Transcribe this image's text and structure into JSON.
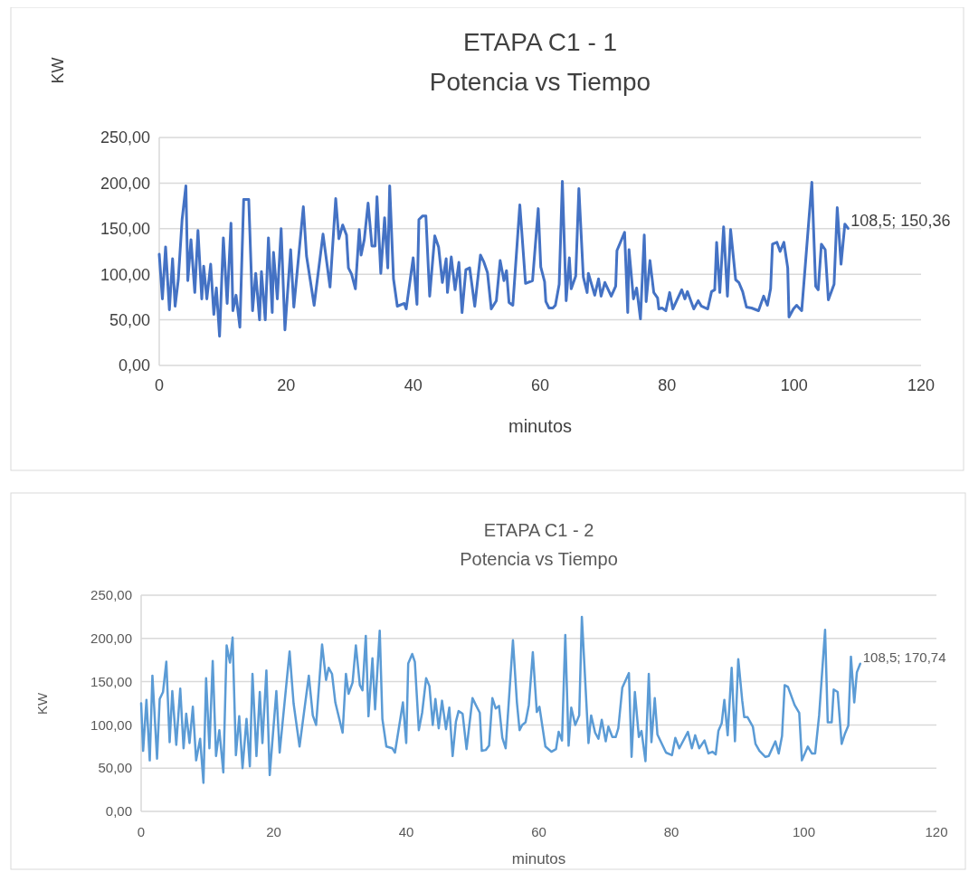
{
  "chart_data": [
    {
      "type": "line",
      "title": "ETAPA C1 - 1\nPotencia vs Tiempo",
      "xlabel": "minutos",
      "ylabel": "KW",
      "xlim": [
        0,
        120
      ],
      "xticks": [
        0,
        20,
        40,
        60,
        80,
        100,
        120
      ],
      "ylim": [
        0,
        250
      ],
      "yticks": [
        {
          "value": 0,
          "label": "0,00"
        },
        {
          "value": 50,
          "label": "50,00"
        },
        {
          "value": 100,
          "label": "100,00"
        },
        {
          "value": 150,
          "label": "150,00"
        },
        {
          "value": 200,
          "label": "200,00"
        },
        {
          "value": 250,
          "label": "250,00"
        }
      ],
      "grid": "y",
      "marker": "none",
      "line_style": "solid",
      "series": [
        {
          "color": "#4472c4",
          "x": [
            0,
            0.5,
            1,
            1.6,
            2.1,
            2.5,
            3,
            3.6,
            4.2,
            4.5,
            5,
            5.6,
            6.1,
            6.7,
            7,
            7.5,
            8.1,
            8.6,
            9,
            9.5,
            10.1,
            10.7,
            11.3,
            11.6,
            12.1,
            12.7,
            13.3,
            14.1,
            14.7,
            15.2,
            15.8,
            16.1,
            16.7,
            17.2,
            17.8,
            18,
            18.6,
            19.2,
            19.8,
            20.7,
            21.2,
            22.7,
            23.2,
            24.4,
            25.8,
            26.9,
            27.8,
            28.3,
            28.9,
            29.5,
            29.8,
            30.3,
            30.9,
            31.5,
            31.8,
            32.3,
            32.9,
            33.5,
            34,
            34.3,
            34.9,
            35.5,
            36,
            36.3,
            36.9,
            37.5,
            38.6,
            38.9,
            40,
            40.6,
            40.9,
            41.5,
            42,
            42.6,
            43.4,
            44,
            44.6,
            45.2,
            45.4,
            46,
            46.6,
            47.2,
            47.7,
            48.3,
            48.9,
            49.7,
            50.6,
            51.1,
            51.7,
            52.3,
            53.1,
            53.7,
            54.3,
            54.7,
            55.1,
            55.7,
            56.8,
            57.7,
            58.8,
            59.7,
            60.1,
            60.7,
            60.9,
            61.4,
            62,
            62.4,
            63,
            63.5,
            64.1,
            64.6,
            64.9,
            65.6,
            66.1,
            66.8,
            67.4,
            67.6,
            68.6,
            69.2,
            69.6,
            70.2,
            71.2,
            71.9,
            72.1,
            73.3,
            73.8,
            74,
            74.7,
            75.2,
            75.8,
            76.4,
            76.7,
            77.3,
            77.9,
            78.5,
            78.7,
            79.2,
            79.8,
            80.4,
            80.9,
            82.3,
            82.8,
            83.2,
            84.2,
            84.9,
            85.4,
            86.4,
            87,
            87.5,
            87.8,
            88.3,
            88.9,
            89.5,
            90,
            90.8,
            91.3,
            91.9,
            92.5,
            93.3,
            94.4,
            95.2,
            95.8,
            96.3,
            96.6,
            97.3,
            97.8,
            98.4,
            99,
            99.2,
            99.9,
            100.4,
            101.2,
            102.8,
            103.4,
            103.8,
            104.3,
            104.9,
            105.4,
            106.3,
            106.8,
            107.4,
            108,
            108.5
          ],
          "values": [
            122,
            73,
            130,
            61,
            117,
            65,
            94,
            160,
            197,
            93,
            138,
            80,
            148,
            73,
            109,
            73,
            111,
            56,
            85,
            32,
            140,
            68,
            156,
            60,
            77,
            42,
            182,
            182,
            60,
            101,
            50,
            103,
            50,
            140,
            58,
            124,
            73,
            150,
            39,
            127,
            64,
            174,
            120,
            66,
            144,
            86,
            183,
            139,
            154,
            143,
            107,
            100,
            84,
            149,
            121,
            138,
            178,
            131,
            131,
            185,
            101,
            162,
            107,
            197,
            95,
            65,
            68,
            62,
            118,
            67,
            160,
            164,
            164,
            76,
            142,
            130,
            91,
            117,
            80,
            119,
            83,
            113,
            58,
            105,
            107,
            65,
            121,
            114,
            102,
            62,
            71,
            115,
            93,
            104,
            69,
            66,
            176,
            90,
            93,
            172,
            108,
            92,
            70,
            63,
            63,
            66,
            89,
            202,
            71,
            118,
            84,
            98,
            194,
            97,
            80,
            101,
            77,
            95,
            76,
            91,
            76,
            87,
            126,
            146,
            58,
            127,
            73,
            85,
            51,
            143,
            70,
            115,
            80,
            74,
            62,
            63,
            60,
            80,
            62,
            83,
            73,
            81,
            62,
            71,
            65,
            62,
            81,
            83,
            135,
            80,
            152,
            76,
            149,
            94,
            91,
            81,
            64,
            63,
            60,
            76,
            66,
            84,
            133,
            135,
            125,
            135,
            107,
            53,
            62,
            66,
            60,
            201,
            87,
            83,
            133,
            127,
            72,
            89,
            173,
            111,
            155,
            150.36
          ]
        }
      ],
      "annotations": [
        {
          "text": "108,5; 150,36",
          "x": 108.5,
          "y": 150.36
        }
      ]
    },
    {
      "type": "line",
      "title": "ETAPA C1 - 2\nPotencia vs Tiempo",
      "xlabel": "minutos",
      "ylabel": "KW",
      "xlim": [
        0,
        120
      ],
      "xticks": [
        0,
        20,
        40,
        60,
        80,
        100,
        120
      ],
      "ylim": [
        0,
        250
      ],
      "yticks": [
        {
          "value": 0,
          "label": "0,00"
        },
        {
          "value": 50,
          "label": "50,00"
        },
        {
          "value": 100,
          "label": "100,00"
        },
        {
          "value": 150,
          "label": "150,00"
        },
        {
          "value": 200,
          "label": "200,00"
        },
        {
          "value": 250,
          "label": "250,00"
        }
      ],
      "grid": "y",
      "marker": "none",
      "line_style": "solid",
      "series": [
        {
          "color": "#5b9bd5",
          "x": [
            0,
            0.3,
            0.8,
            1.3,
            1.7,
            2.4,
            2.8,
            3.3,
            3.8,
            4.3,
            4.7,
            5.3,
            5.9,
            6.4,
            6.8,
            7.3,
            7.8,
            8.3,
            8.9,
            9.4,
            9.8,
            10.3,
            10.8,
            11.3,
            11.8,
            12.4,
            12.9,
            13.4,
            13.8,
            14.3,
            14.8,
            15.3,
            15.9,
            16.4,
            16.8,
            17.4,
            17.9,
            18.3,
            18.9,
            19.4,
            20.4,
            20.9,
            22.4,
            23,
            23.9,
            25.3,
            25.9,
            26.4,
            27.3,
            27.9,
            28.3,
            28.8,
            29.3,
            30.4,
            30.9,
            31.3,
            31.9,
            32.4,
            33,
            33.4,
            33.9,
            34.3,
            34.9,
            35.3,
            36,
            36.4,
            37,
            37.9,
            38.3,
            39.5,
            40,
            40.3,
            40.9,
            41.3,
            41.9,
            42.4,
            43,
            43.5,
            44,
            44.4,
            44.9,
            45.4,
            46,
            46.5,
            47,
            47.5,
            47.9,
            48.5,
            49.1,
            50,
            50.5,
            51.1,
            51.4,
            52,
            52.5,
            53,
            53.5,
            54,
            54.5,
            55,
            56.1,
            56.7,
            57.1,
            57.5,
            58,
            58.5,
            59.1,
            59.7,
            60.1,
            61,
            61.9,
            62.6,
            63,
            63.5,
            64,
            64.5,
            64.9,
            65.5,
            66.1,
            66.5,
            67.5,
            67.9,
            68.5,
            69,
            69.5,
            70.1,
            70.5,
            71.1,
            71.6,
            72,
            72.6,
            73.6,
            74,
            74.5,
            75.1,
            75.5,
            76.1,
            76.6,
            77,
            77.5,
            77.9,
            79.2,
            80.1,
            80.6,
            81.2,
            82.5,
            83.1,
            83.6,
            84.2,
            85,
            85.6,
            86.2,
            86.7,
            87.1,
            87.6,
            88,
            88.5,
            89.1,
            89.6,
            90.1,
            90.7,
            91,
            91.5,
            92.3,
            92.7,
            93.3,
            94.2,
            94.7,
            95.7,
            96.2,
            96.7,
            97.1,
            97.6,
            98.6,
            99.3,
            99.7,
            100.6,
            101.2,
            101.7,
            102.3,
            103.2,
            103.6,
            104.2,
            104.5,
            105.1,
            105.7,
            106.2,
            106.7,
            107.1,
            107.6,
            108,
            108.5
          ],
          "values": [
            125,
            70,
            129,
            59,
            157,
            61,
            130,
            138,
            173,
            80,
            139,
            77,
            142,
            73,
            113,
            79,
            121,
            59,
            84,
            33,
            154,
            73,
            174,
            64,
            94,
            45,
            192,
            172,
            201,
            65,
            110,
            50,
            107,
            52,
            159,
            64,
            138,
            79,
            163,
            42,
            139,
            68,
            185,
            125,
            75,
            157,
            111,
            100,
            193,
            152,
            166,
            159,
            126,
            91,
            159,
            136,
            149,
            192,
            146,
            140,
            203,
            110,
            177,
            118,
            209,
            107,
            75,
            73,
            68,
            126,
            79,
            171,
            182,
            173,
            94,
            114,
            154,
            145,
            100,
            130,
            96,
            128,
            95,
            120,
            64,
            104,
            116,
            113,
            72,
            131,
            123,
            114,
            70,
            71,
            76,
            131,
            119,
            122,
            85,
            73,
            198,
            126,
            94,
            100,
            103,
            123,
            184,
            115,
            121,
            75,
            69,
            72,
            92,
            82,
            204,
            76,
            120,
            100,
            111,
            225,
            79,
            111,
            91,
            84,
            106,
            81,
            98,
            86,
            86,
            96,
            143,
            160,
            63,
            138,
            86,
            93,
            58,
            159,
            80,
            131,
            89,
            68,
            65,
            85,
            73,
            92,
            73,
            88,
            73,
            82,
            67,
            69,
            66,
            93,
            102,
            129,
            88,
            166,
            81,
            176,
            128,
            109,
            109,
            98,
            78,
            70,
            63,
            64,
            81,
            67,
            87,
            146,
            144,
            123,
            114,
            59,
            75,
            67,
            67,
            111,
            210,
            103,
            103,
            141,
            138,
            78,
            90,
            99,
            179,
            126,
            161,
            170.74
          ]
        }
      ],
      "annotations": [
        {
          "text": "108,5; 170,74",
          "x": 108.5,
          "y": 170.74
        }
      ]
    }
  ]
}
